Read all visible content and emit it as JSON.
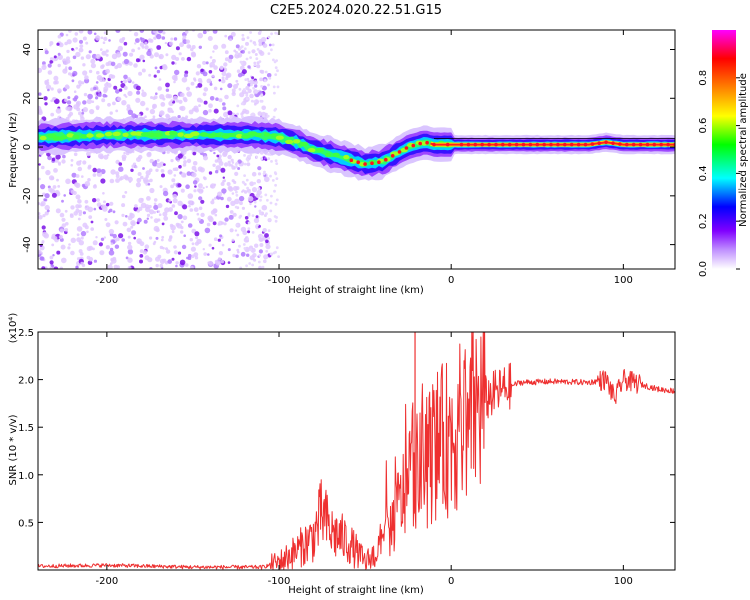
{
  "title": "C2E5.2024.020.22.51.G15",
  "chart_data": [
    {
      "type": "heatmap",
      "xlabel": "Height of straight line (km)",
      "ylabel": "Frequency (Hz)",
      "xlim": [
        -240,
        130
      ],
      "ylim": [
        -50,
        48
      ],
      "xticks": [
        -200,
        -100,
        0,
        100
      ],
      "yticks": [
        -40,
        -20,
        0,
        20,
        40
      ],
      "colorbar": {
        "label": "Normalized spectral amplitude",
        "range": [
          0,
          1
        ],
        "ticks": [
          "0.0",
          "0.2",
          "0.4",
          "0.6",
          "0.8"
        ],
        "colormap": [
          "#ffffff",
          "#8000ff",
          "#0000ff",
          "#00ffff",
          "#00ff00",
          "#ffff00",
          "#ff8000",
          "#ff0000",
          "#ff00ff"
        ]
      },
      "ridge": {
        "x": [
          -240,
          -200,
          -160,
          -130,
          -115,
          -100,
          -90,
          -80,
          -70,
          -60,
          -50,
          -40,
          -35,
          -30,
          -25,
          -20,
          -15,
          -10,
          0,
          20,
          40,
          80,
          90,
          100,
          130
        ],
        "y": [
          4,
          5,
          5,
          5,
          5,
          4,
          2,
          -1,
          -3,
          -5,
          -7,
          -6,
          -4,
          -2,
          0,
          1,
          2,
          1,
          1,
          1,
          1,
          1,
          2,
          1,
          1
        ]
      }
    },
    {
      "type": "line",
      "xlabel": "Height of straight line (km)",
      "ylabel": "SNR (10 * v/v)",
      "multiplier": "(x10⁴)",
      "xlim": [
        -240,
        130
      ],
      "ylim": [
        0,
        2.5
      ],
      "xticks": [
        -200,
        -100,
        0,
        100
      ],
      "yticks": [
        0.5,
        1.0,
        1.5,
        2.0,
        2.5
      ],
      "series": [
        {
          "color": "#ee3030",
          "x": [
            -240,
            -200,
            -150,
            -110,
            -100,
            -90,
            -80,
            -75,
            -70,
            -60,
            -50,
            -45,
            -40,
            -35,
            -30,
            -25,
            -22,
            -20,
            -15,
            -10,
            -5,
            0,
            10,
            20,
            30,
            40,
            60,
            80,
            90,
            95,
            100,
            110,
            120,
            130
          ],
          "y": [
            0.04,
            0.05,
            0.03,
            0.03,
            0.08,
            0.2,
            0.35,
            0.6,
            0.4,
            0.3,
            0.08,
            0.15,
            0.3,
            0.45,
            0.7,
            0.9,
            1.2,
            1.0,
            1.1,
            1.3,
            1.35,
            1.4,
            1.6,
            1.8,
            1.9,
            1.97,
            1.98,
            1.97,
            2.0,
            1.8,
            2.0,
            1.95,
            1.9,
            1.88
          ]
        }
      ]
    }
  ]
}
